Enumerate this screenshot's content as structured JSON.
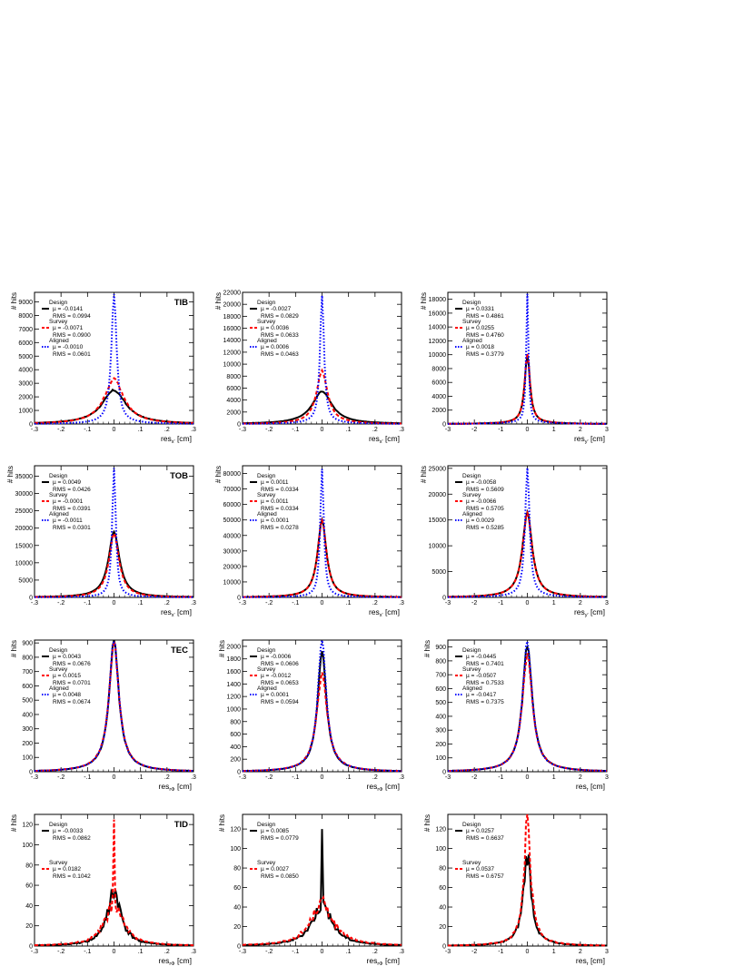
{
  "chart_data": [
    {
      "type": "line",
      "row": 0,
      "col": 0,
      "region": "TIB",
      "xlabel": "res",
      "xsub": "x'",
      "xunit": "[cm]",
      "ylabel": "# hits",
      "xlim": [
        -0.3,
        0.3
      ],
      "ylim": [
        0,
        9700
      ],
      "xticks": [
        -0.3,
        -0.2,
        -0.1,
        0,
        0.1,
        0.2,
        0.3
      ],
      "yticks": [
        0,
        1000,
        2000,
        3000,
        4000,
        5000,
        6000,
        7000,
        8000,
        9000
      ],
      "series": [
        {
          "name": "Design",
          "mu": "µ = -0.0141",
          "rms": "RMS = 0.0994",
          "peak": 2300,
          "width": 0.055,
          "tail": 0.08,
          "noise": 0.06
        },
        {
          "name": "Survey",
          "mu": "µ = -0.0071",
          "rms": "RMS = 0.0900",
          "peak": 3100,
          "width": 0.045,
          "tail": 0.06,
          "noise": 0.06
        },
        {
          "name": "Aligned",
          "mu": "µ = -0.0010",
          "rms": "RMS = 0.0601",
          "peak": 9300,
          "width": 0.012,
          "tail": 0.02,
          "noise": 0.02
        }
      ]
    },
    {
      "type": "line",
      "row": 0,
      "col": 1,
      "region": "",
      "xlabel": "res",
      "xsub": "x'",
      "xunit": "[cm]",
      "ylabel": "# hits",
      "xlim": [
        -0.3,
        0.3
      ],
      "ylim": [
        0,
        22000
      ],
      "xticks": [
        -0.3,
        -0.2,
        -0.1,
        0,
        0.1,
        0.2,
        0.3
      ],
      "yticks": [
        0,
        2000,
        4000,
        6000,
        8000,
        10000,
        12000,
        14000,
        16000,
        18000,
        20000,
        22000
      ],
      "series": [
        {
          "name": "Design",
          "mu": "µ = -0.0027",
          "rms": "RMS = 0.0829",
          "peak": 5200,
          "width": 0.045,
          "tail": 0.05,
          "noise": 0.03
        },
        {
          "name": "Survey",
          "mu": "µ = 0.0036",
          "rms": "RMS = 0.0633",
          "peak": 8500,
          "width": 0.025,
          "tail": 0.04,
          "noise": 0.03
        },
        {
          "name": "Aligned",
          "mu": "µ = 0.0006",
          "rms": "RMS = 0.0463",
          "peak": 21200,
          "width": 0.009,
          "tail": 0.02,
          "noise": 0.02
        }
      ]
    },
    {
      "type": "line",
      "row": 0,
      "col": 2,
      "region": "",
      "xlabel": "res",
      "xsub": "y'",
      "xunit": "[cm]",
      "ylabel": "# hits",
      "xlim": [
        -3,
        3
      ],
      "ylim": [
        0,
        19000
      ],
      "xticks": [
        -3,
        -2,
        -1,
        0,
        1,
        2,
        3
      ],
      "yticks": [
        0,
        2000,
        4000,
        6000,
        8000,
        10000,
        12000,
        14000,
        16000,
        18000
      ],
      "series": [
        {
          "name": "Design",
          "mu": "µ = 0.0331",
          "rms": "RMS = 0.4861",
          "peak": 9700,
          "width": 0.12,
          "tail": 0.03,
          "noise": 0.02
        },
        {
          "name": "Survey",
          "mu": "µ = 0.0255",
          "rms": "RMS = 0.4760",
          "peak": 9800,
          "width": 0.12,
          "tail": 0.03,
          "noise": 0.02
        },
        {
          "name": "Aligned",
          "mu": "µ = 0.0018",
          "rms": "RMS = 0.3779",
          "peak": 18500,
          "width": 0.05,
          "tail": 0.02,
          "noise": 0.02
        }
      ]
    },
    {
      "type": "line",
      "row": 1,
      "col": 0,
      "region": "TOB",
      "xlabel": "res",
      "xsub": "x'",
      "xunit": "[cm]",
      "ylabel": "# hits",
      "xlim": [
        -0.3,
        0.3
      ],
      "ylim": [
        0,
        38000
      ],
      "xticks": [
        -0.3,
        -0.2,
        -0.1,
        0,
        0.1,
        0.2,
        0.3
      ],
      "yticks": [
        0,
        5000,
        10000,
        15000,
        20000,
        25000,
        30000,
        35000
      ],
      "series": [
        {
          "name": "Design",
          "mu": "µ = 0.0049",
          "rms": "RMS = 0.0426",
          "peak": 18500,
          "width": 0.025,
          "tail": 0.02,
          "noise": 0.01
        },
        {
          "name": "Survey",
          "mu": "µ = -0.0001",
          "rms": "RMS = 0.0391",
          "peak": 18000,
          "width": 0.023,
          "tail": 0.02,
          "noise": 0.01
        },
        {
          "name": "Aligned",
          "mu": "µ = -0.0011",
          "rms": "RMS = 0.0301",
          "peak": 37000,
          "width": 0.008,
          "tail": 0.01,
          "noise": 0.01
        }
      ]
    },
    {
      "type": "line",
      "row": 1,
      "col": 1,
      "region": "",
      "xlabel": "res",
      "xsub": "x'",
      "xunit": "[cm]",
      "ylabel": "# hits",
      "xlim": [
        -0.3,
        0.3
      ],
      "ylim": [
        0,
        85000
      ],
      "xticks": [
        -0.3,
        -0.2,
        -0.1,
        0,
        0.1,
        0.2,
        0.3
      ],
      "yticks": [
        0,
        10000,
        20000,
        30000,
        40000,
        50000,
        60000,
        70000,
        80000
      ],
      "series": [
        {
          "name": "Design",
          "mu": "µ = 0.0011",
          "rms": "RMS = 0.0334",
          "peak": 49000,
          "width": 0.02,
          "tail": 0.02,
          "noise": 0.01
        },
        {
          "name": "Survey",
          "mu": "µ = 0.0011",
          "rms": "RMS = 0.0334",
          "peak": 48500,
          "width": 0.02,
          "tail": 0.02,
          "noise": 0.01
        },
        {
          "name": "Aligned",
          "mu": "µ = 0.0001",
          "rms": "RMS = 0.0278",
          "peak": 82000,
          "width": 0.008,
          "tail": 0.01,
          "noise": 0.01
        }
      ]
    },
    {
      "type": "line",
      "row": 1,
      "col": 2,
      "region": "",
      "xlabel": "res",
      "xsub": "y'",
      "xunit": "[cm]",
      "ylabel": "# hits",
      "xlim": [
        -3,
        3
      ],
      "ylim": [
        0,
        25500
      ],
      "xticks": [
        -3,
        -2,
        -1,
        0,
        1,
        2,
        3
      ],
      "yticks": [
        0,
        5000,
        10000,
        15000,
        20000,
        25000
      ],
      "series": [
        {
          "name": "Design",
          "mu": "µ = -0.0058",
          "rms": "RMS = 0.5609",
          "peak": 16000,
          "width": 0.22,
          "tail": 0.03,
          "noise": 0.01
        },
        {
          "name": "Survey",
          "mu": "µ = -0.0066",
          "rms": "RMS = 0.5705",
          "peak": 15800,
          "width": 0.22,
          "tail": 0.03,
          "noise": 0.01
        },
        {
          "name": "Aligned",
          "mu": "µ = 0.0029",
          "rms": "RMS = 0.5285",
          "peak": 24500,
          "width": 0.1,
          "tail": 0.02,
          "noise": 0.01
        }
      ]
    },
    {
      "type": "line",
      "row": 2,
      "col": 0,
      "region": "TEC",
      "xlabel": "res",
      "xsub": "rΦ",
      "xunit": "[cm]",
      "ylabel": "# hits",
      "xlim": [
        -0.3,
        0.3
      ],
      "ylim": [
        0,
        920
      ],
      "xticks": [
        -0.3,
        -0.2,
        -0.1,
        0,
        0.1,
        0.2,
        0.3
      ],
      "yticks": [
        0,
        100,
        200,
        300,
        400,
        500,
        600,
        700,
        800,
        900
      ],
      "series": [
        {
          "name": "Design",
          "mu": "µ = 0.0043",
          "rms": "RMS = 0.0676",
          "peak": 880,
          "width": 0.022,
          "tail": 0.04,
          "noise": 0.05
        },
        {
          "name": "Survey",
          "mu": "µ = 0.0015",
          "rms": "RMS = 0.0701",
          "peak": 860,
          "width": 0.023,
          "tail": 0.04,
          "noise": 0.05
        },
        {
          "name": "Aligned",
          "mu": "µ = 0.0048",
          "rms": "RMS = 0.0674",
          "peak": 890,
          "width": 0.022,
          "tail": 0.04,
          "noise": 0.05
        }
      ]
    },
    {
      "type": "line",
      "row": 2,
      "col": 1,
      "region": "",
      "xlabel": "res",
      "xsub": "rΦ",
      "xunit": "[cm]",
      "ylabel": "# hits",
      "xlim": [
        -0.3,
        0.3
      ],
      "ylim": [
        0,
        2100
      ],
      "xticks": [
        -0.3,
        -0.2,
        -0.1,
        0,
        0.1,
        0.2,
        0.3
      ],
      "yticks": [
        0,
        200,
        400,
        600,
        800,
        1000,
        1200,
        1400,
        1600,
        1800,
        2000
      ],
      "series": [
        {
          "name": "Design",
          "mu": "µ = -0.0006",
          "rms": "RMS = 0.0606",
          "peak": 1850,
          "width": 0.02,
          "tail": 0.04,
          "noise": 0.05
        },
        {
          "name": "Survey",
          "mu": "µ = -0.0012",
          "rms": "RMS = 0.0653",
          "peak": 1500,
          "width": 0.024,
          "tail": 0.04,
          "noise": 0.05
        },
        {
          "name": "Aligned",
          "mu": "µ = 0.0001",
          "rms": "RMS = 0.0594",
          "peak": 2050,
          "width": 0.019,
          "tail": 0.04,
          "noise": 0.05
        }
      ]
    },
    {
      "type": "line",
      "row": 2,
      "col": 2,
      "region": "",
      "xlabel": "res",
      "xsub": "r",
      "xunit": "[cm]",
      "ylabel": "# hits",
      "xlim": [
        -3,
        3
      ],
      "ylim": [
        0,
        950
      ],
      "xticks": [
        -3,
        -2,
        -1,
        0,
        1,
        2,
        3
      ],
      "yticks": [
        0,
        100,
        200,
        300,
        400,
        500,
        600,
        700,
        800,
        900
      ],
      "series": [
        {
          "name": "Design",
          "mu": "µ = -0.0445",
          "rms": "RMS = 0.7401",
          "peak": 870,
          "width": 0.22,
          "tail": 0.04,
          "noise": 0.05
        },
        {
          "name": "Survey",
          "mu": "µ = -0.0507",
          "rms": "RMS = 0.7533",
          "peak": 810,
          "width": 0.23,
          "tail": 0.04,
          "noise": 0.05
        },
        {
          "name": "Aligned",
          "mu": "µ = -0.0417",
          "rms": "RMS = 0.7375",
          "peak": 910,
          "width": 0.21,
          "tail": 0.04,
          "noise": 0.05
        }
      ]
    },
    {
      "type": "line",
      "row": 3,
      "col": 0,
      "region": "TID",
      "xlabel": "res",
      "xsub": "rΦ",
      "xunit": "[cm]",
      "ylabel": "# hits",
      "xlim": [
        -0.3,
        0.3
      ],
      "ylim": [
        0,
        130
      ],
      "xticks": [
        -0.3,
        -0.2,
        -0.1,
        0,
        0.1,
        0.2,
        0.3
      ],
      "yticks": [
        0,
        20,
        40,
        60,
        80,
        100,
        120
      ],
      "series": [
        {
          "name": "Design",
          "mu": "µ = -0.0033",
          "rms": "RMS = 0.0862",
          "peak": 50,
          "width": 0.03,
          "tail": 0.06,
          "noise": 0.35
        },
        {
          "name": "Survey",
          "mu": "µ = 0.0182",
          "rms": "RMS = 0.1042",
          "peak": 40,
          "width": 0.04,
          "tail": 0.06,
          "noise": 0.35,
          "spike": 125
        }
      ]
    },
    {
      "type": "line",
      "row": 3,
      "col": 1,
      "region": "",
      "xlabel": "res",
      "xsub": "rΦ",
      "xunit": "[cm]",
      "ylabel": "# hits",
      "xlim": [
        -0.3,
        0.3
      ],
      "ylim": [
        0,
        135
      ],
      "xticks": [
        -0.3,
        -0.2,
        -0.1,
        0,
        0.1,
        0.2,
        0.3
      ],
      "yticks": [
        0,
        20,
        40,
        60,
        80,
        100,
        120
      ],
      "series": [
        {
          "name": "Design",
          "mu": "µ = 0.0085",
          "rms": "RMS = 0.0779",
          "peak": 40,
          "width": 0.045,
          "tail": 0.06,
          "noise": 0.3,
          "spike": 120
        },
        {
          "name": "Survey",
          "mu": "µ = 0.0027",
          "rms": "RMS = 0.0850",
          "peak": 42,
          "width": 0.05,
          "tail": 0.06,
          "noise": 0.3
        }
      ]
    },
    {
      "type": "line",
      "row": 3,
      "col": 2,
      "region": "",
      "xlabel": "res",
      "xsub": "r",
      "xunit": "[cm]",
      "ylabel": "# hits",
      "xlim": [
        -3,
        3
      ],
      "ylim": [
        0,
        135
      ],
      "xticks": [
        -3,
        -2,
        -1,
        0,
        1,
        2,
        3
      ],
      "yticks": [
        0,
        20,
        40,
        60,
        80,
        100,
        120
      ],
      "series": [
        {
          "name": "Design",
          "mu": "µ = 0.0257",
          "rms": "RMS = 0.6637",
          "peak": 90,
          "width": 0.18,
          "tail": 0.04,
          "noise": 0.25
        },
        {
          "name": "Survey",
          "mu": "µ = 0.0537",
          "rms": "RMS = 0.6757",
          "peak": 128,
          "width": 0.15,
          "tail": 0.04,
          "noise": 0.25
        }
      ]
    }
  ],
  "colors": {
    "Design": "#000000",
    "Survey": "#ff0000",
    "Aligned": "#0000ff"
  }
}
